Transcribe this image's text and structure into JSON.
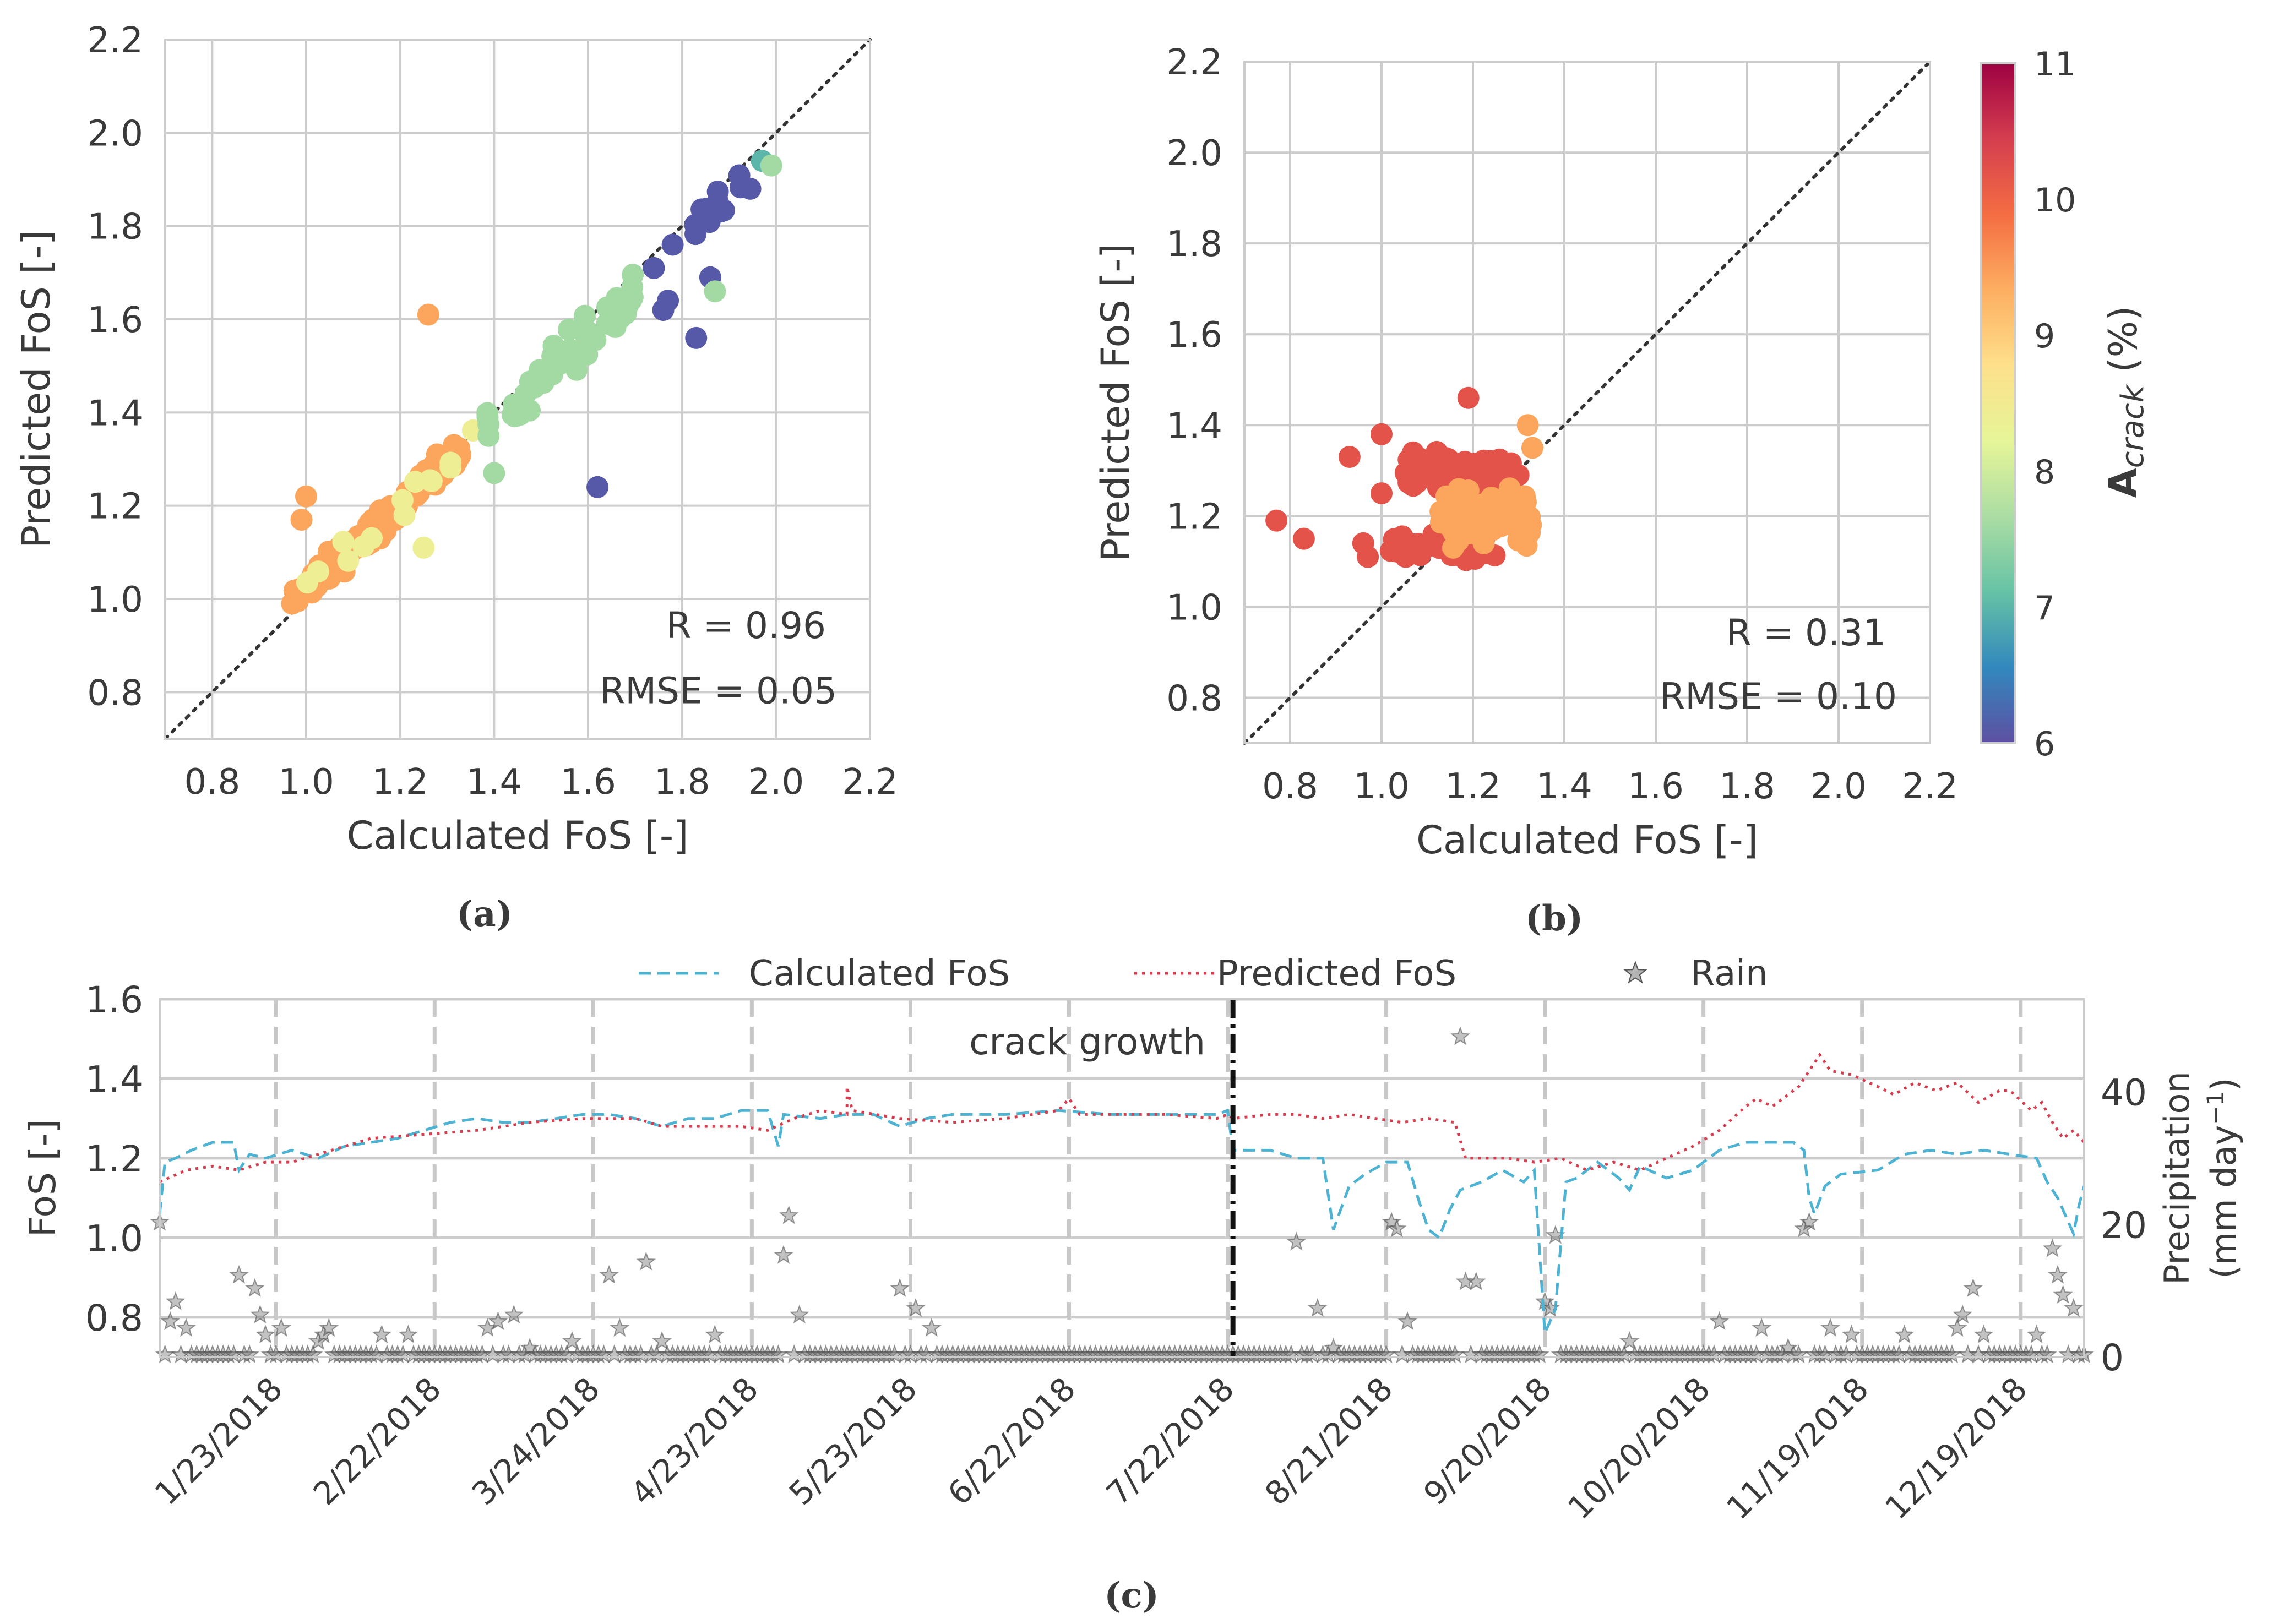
{
  "colors": {
    "grid": "#cccccc",
    "frame": "#cccccc",
    "text": "#3a3a3a",
    "calc_line": "#4eb3d3",
    "pred_line": "#d53e4f",
    "rain": "#777777",
    "diag": "#333333",
    "cmap": [
      "#5e4fa2",
      "#3288bd",
      "#66c2a5",
      "#abdda4",
      "#e6f598",
      "#fee08b",
      "#fdae61",
      "#f46d43",
      "#d53e4f",
      "#9e0142"
    ]
  },
  "chart_data": [
    {
      "id": "a",
      "type": "scatter",
      "caption": "(a)",
      "xlabel": "Calculated FoS [-]",
      "ylabel": "Predicted FoS [-]",
      "xlim": [
        0.7,
        2.2
      ],
      "ylim": [
        0.7,
        2.2
      ],
      "xticks": [
        "0.8",
        "1.0",
        "1.2",
        "1.4",
        "1.6",
        "1.8",
        "2.0",
        "2.2"
      ],
      "yticks": [
        "0.8",
        "1.0",
        "1.2",
        "1.4",
        "1.6",
        "1.8",
        "2.0",
        "2.2"
      ],
      "annotations": [
        "R = 0.96",
        "RMSE = 0.05"
      ],
      "clusters": [
        {
          "name": "orange",
          "color_value": 9.4,
          "n": 130,
          "x_range": [
            0.97,
            1.33
          ],
          "slope": 0.9,
          "intercept": 0.12,
          "noise": 0.035
        },
        {
          "name": "light-yellow",
          "color_value": 8.4,
          "n": 14,
          "x_range": [
            0.98,
            1.36
          ],
          "slope": 0.9,
          "intercept": 0.12,
          "noise": 0.04
        },
        {
          "name": "green",
          "color_value": 7.6,
          "n": 55,
          "x_range": [
            1.38,
            1.7
          ],
          "slope": 0.95,
          "intercept": 0.05,
          "noise": 0.05
        },
        {
          "name": "purple",
          "color_value": 6.1,
          "n": 16,
          "x_range": [
            1.82,
            1.95
          ],
          "slope": 1.0,
          "intercept": -0.03,
          "noise": 0.04
        }
      ],
      "points": [
        {
          "x": 1.26,
          "y": 1.61,
          "c": 9.4
        },
        {
          "x": 1.62,
          "y": 1.24,
          "c": 6.1
        },
        {
          "x": 1.76,
          "y": 1.62,
          "c": 6.1
        },
        {
          "x": 1.77,
          "y": 1.64,
          "c": 6.1
        },
        {
          "x": 1.83,
          "y": 1.56,
          "c": 6.1
        },
        {
          "x": 1.86,
          "y": 1.69,
          "c": 6.1
        },
        {
          "x": 1.74,
          "y": 1.71,
          "c": 6.1
        },
        {
          "x": 1.78,
          "y": 1.76,
          "c": 6.1
        },
        {
          "x": 1.97,
          "y": 1.94,
          "c": 7.0
        },
        {
          "x": 1.99,
          "y": 1.93,
          "c": 7.6
        },
        {
          "x": 1.87,
          "y": 1.66,
          "c": 7.6
        },
        {
          "x": 1.4,
          "y": 1.27,
          "c": 7.6
        },
        {
          "x": 1.25,
          "y": 1.11,
          "c": 8.4
        },
        {
          "x": 0.97,
          "y": 0.99,
          "c": 9.4
        },
        {
          "x": 1.0,
          "y": 1.22,
          "c": 9.4
        },
        {
          "x": 0.99,
          "y": 1.17,
          "c": 9.4
        }
      ]
    },
    {
      "id": "b",
      "type": "scatter",
      "caption": "(b)",
      "xlabel": "Calculated FoS [-]",
      "ylabel": "Predicted FoS [-]",
      "xlim": [
        0.7,
        2.2
      ],
      "ylim": [
        0.7,
        2.2
      ],
      "xticks": [
        "0.8",
        "1.0",
        "1.2",
        "1.4",
        "1.6",
        "1.8",
        "2.0",
        "2.2"
      ],
      "yticks": [
        "0.8",
        "1.0",
        "1.2",
        "1.4",
        "1.6",
        "1.8",
        "2.0",
        "2.2"
      ],
      "annotations": [
        "R = 0.31",
        "RMSE = 0.10"
      ],
      "colorbar": {
        "label_main": "A",
        "label_sub": "crack",
        "label_unit": " (%)",
        "range": [
          6,
          11
        ],
        "ticks": [
          "6",
          "7",
          "8",
          "9",
          "10",
          "11"
        ]
      },
      "clusters": [
        {
          "name": "red-upper",
          "color_value": 10.2,
          "n": 90,
          "x_range": [
            1.05,
            1.3
          ],
          "y_mean": 1.3,
          "y_sd": 0.035
        },
        {
          "name": "red-lower",
          "color_value": 10.2,
          "n": 45,
          "x_range": [
            1.0,
            1.25
          ],
          "y_mean": 1.13,
          "y_sd": 0.03
        },
        {
          "name": "orange",
          "color_value": 9.4,
          "n": 70,
          "x_range": [
            1.12,
            1.33
          ],
          "y_mean": 1.2,
          "y_sd": 0.06
        }
      ],
      "points": [
        {
          "x": 0.77,
          "y": 1.19,
          "c": 10.2
        },
        {
          "x": 0.83,
          "y": 1.15,
          "c": 10.2
        },
        {
          "x": 0.93,
          "y": 1.33,
          "c": 10.2
        },
        {
          "x": 0.96,
          "y": 1.14,
          "c": 10.2
        },
        {
          "x": 0.97,
          "y": 1.11,
          "c": 10.2
        },
        {
          "x": 1.0,
          "y": 1.38,
          "c": 10.2
        },
        {
          "x": 1.0,
          "y": 1.25,
          "c": 10.2
        },
        {
          "x": 1.19,
          "y": 1.46,
          "c": 10.2
        },
        {
          "x": 1.32,
          "y": 1.4,
          "c": 9.4
        },
        {
          "x": 1.33,
          "y": 1.35,
          "c": 9.4
        }
      ]
    },
    {
      "id": "c",
      "type": "line",
      "caption": "(c)",
      "ylabel_left": "FoS [-]",
      "ylabel_right": "Precipitation",
      "ylabel_right_unit": "(mm day",
      "ylabel_right_exp": "−1",
      "ylabel_right_close": ")",
      "ylim_left": [
        0.7,
        1.6
      ],
      "yticks_left": [
        "0.8",
        "1.0",
        "1.2",
        "1.4",
        "1.6"
      ],
      "ylim_right": [
        0,
        54
      ],
      "yticks_right": [
        "0",
        "20",
        "40"
      ],
      "x_days": [
        0,
        364
      ],
      "xtick_days": [
        22,
        52,
        82,
        112,
        142,
        172,
        202,
        232,
        262,
        292,
        322,
        352
      ],
      "xticks": [
        "1/23/2018",
        "2/22/2018",
        "3/24/2018",
        "4/23/2018",
        "5/23/2018",
        "6/22/2018",
        "7/22/2018",
        "8/21/2018",
        "9/20/2018",
        "10/20/2018",
        "11/19/2018",
        "12/19/2018"
      ],
      "crack_day": 203,
      "crack_label": "crack growth",
      "legend": [
        "Calculated FoS",
        "Predicted FoS",
        "Rain"
      ],
      "calculated_fos": [
        [
          0,
          1.06
        ],
        [
          1,
          1.19
        ],
        [
          3,
          1.2
        ],
        [
          6,
          1.22
        ],
        [
          10,
          1.24
        ],
        [
          14,
          1.24
        ],
        [
          15,
          1.17
        ],
        [
          17,
          1.21
        ],
        [
          20,
          1.2
        ],
        [
          25,
          1.22
        ],
        [
          30,
          1.2
        ],
        [
          35,
          1.23
        ],
        [
          40,
          1.24
        ],
        [
          45,
          1.25
        ],
        [
          50,
          1.27
        ],
        [
          55,
          1.29
        ],
        [
          60,
          1.3
        ],
        [
          65,
          1.29
        ],
        [
          70,
          1.29
        ],
        [
          75,
          1.3
        ],
        [
          80,
          1.31
        ],
        [
          85,
          1.31
        ],
        [
          90,
          1.3
        ],
        [
          95,
          1.28
        ],
        [
          100,
          1.3
        ],
        [
          105,
          1.3
        ],
        [
          110,
          1.32
        ],
        [
          115,
          1.32
        ],
        [
          117,
          1.23
        ],
        [
          118,
          1.31
        ],
        [
          125,
          1.3
        ],
        [
          130,
          1.31
        ],
        [
          135,
          1.31
        ],
        [
          140,
          1.28
        ],
        [
          145,
          1.3
        ],
        [
          150,
          1.31
        ],
        [
          160,
          1.31
        ],
        [
          170,
          1.32
        ],
        [
          180,
          1.31
        ],
        [
          190,
          1.31
        ],
        [
          200,
          1.31
        ],
        [
          202,
          1.32
        ],
        [
          203,
          1.22
        ],
        [
          210,
          1.22
        ],
        [
          215,
          1.2
        ],
        [
          220,
          1.2
        ],
        [
          222,
          1.02
        ],
        [
          225,
          1.13
        ],
        [
          228,
          1.16
        ],
        [
          232,
          1.19
        ],
        [
          236,
          1.19
        ],
        [
          238,
          1.1
        ],
        [
          240,
          1.02
        ],
        [
          242,
          1.0
        ],
        [
          244,
          1.07
        ],
        [
          246,
          1.12
        ],
        [
          250,
          1.14
        ],
        [
          254,
          1.17
        ],
        [
          258,
          1.14
        ],
        [
          260,
          1.17
        ],
        [
          262,
          0.76
        ],
        [
          264,
          0.82
        ],
        [
          266,
          1.14
        ],
        [
          268,
          1.15
        ],
        [
          272,
          1.19
        ],
        [
          276,
          1.15
        ],
        [
          278,
          1.12
        ],
        [
          280,
          1.18
        ],
        [
          285,
          1.15
        ],
        [
          290,
          1.17
        ],
        [
          295,
          1.22
        ],
        [
          300,
          1.24
        ],
        [
          305,
          1.24
        ],
        [
          309,
          1.24
        ],
        [
          311,
          1.22
        ],
        [
          312,
          1.1
        ],
        [
          313,
          1.06
        ],
        [
          315,
          1.13
        ],
        [
          318,
          1.16
        ],
        [
          325,
          1.17
        ],
        [
          330,
          1.21
        ],
        [
          335,
          1.22
        ],
        [
          340,
          1.21
        ],
        [
          345,
          1.22
        ],
        [
          350,
          1.21
        ],
        [
          355,
          1.2
        ],
        [
          357,
          1.14
        ],
        [
          359,
          1.1
        ],
        [
          361,
          1.04
        ],
        [
          362,
          1.01
        ],
        [
          363,
          1.08
        ],
        [
          364,
          1.13
        ]
      ],
      "predicted_fos": [
        [
          0,
          1.14
        ],
        [
          5,
          1.17
        ],
        [
          10,
          1.18
        ],
        [
          15,
          1.17
        ],
        [
          20,
          1.19
        ],
        [
          25,
          1.19
        ],
        [
          30,
          1.21
        ],
        [
          35,
          1.23
        ],
        [
          40,
          1.25
        ],
        [
          50,
          1.26
        ],
        [
          60,
          1.27
        ],
        [
          70,
          1.29
        ],
        [
          80,
          1.3
        ],
        [
          90,
          1.3
        ],
        [
          95,
          1.28
        ],
        [
          100,
          1.28
        ],
        [
          110,
          1.28
        ],
        [
          115,
          1.27
        ],
        [
          120,
          1.3
        ],
        [
          125,
          1.32
        ],
        [
          130,
          1.31
        ],
        [
          130,
          1.38
        ],
        [
          131,
          1.32
        ],
        [
          140,
          1.3
        ],
        [
          150,
          1.29
        ],
        [
          160,
          1.3
        ],
        [
          170,
          1.32
        ],
        [
          172,
          1.35
        ],
        [
          174,
          1.31
        ],
        [
          180,
          1.31
        ],
        [
          190,
          1.31
        ],
        [
          200,
          1.3
        ],
        [
          202,
          1.31
        ],
        [
          203,
          1.3
        ],
        [
          210,
          1.31
        ],
        [
          215,
          1.31
        ],
        [
          220,
          1.3
        ],
        [
          225,
          1.31
        ],
        [
          230,
          1.3
        ],
        [
          235,
          1.29
        ],
        [
          240,
          1.3
        ],
        [
          245,
          1.29
        ],
        [
          247,
          1.2
        ],
        [
          250,
          1.2
        ],
        [
          255,
          1.2
        ],
        [
          260,
          1.19
        ],
        [
          265,
          1.2
        ],
        [
          270,
          1.17
        ],
        [
          275,
          1.19
        ],
        [
          280,
          1.17
        ],
        [
          285,
          1.2
        ],
        [
          290,
          1.23
        ],
        [
          295,
          1.27
        ],
        [
          300,
          1.33
        ],
        [
          302,
          1.35
        ],
        [
          305,
          1.33
        ],
        [
          310,
          1.38
        ],
        [
          312,
          1.42
        ],
        [
          314,
          1.46
        ],
        [
          316,
          1.42
        ],
        [
          320,
          1.41
        ],
        [
          325,
          1.38
        ],
        [
          328,
          1.36
        ],
        [
          332,
          1.39
        ],
        [
          336,
          1.37
        ],
        [
          340,
          1.39
        ],
        [
          344,
          1.34
        ],
        [
          348,
          1.37
        ],
        [
          350,
          1.37
        ],
        [
          354,
          1.32
        ],
        [
          356,
          1.34
        ],
        [
          358,
          1.29
        ],
        [
          360,
          1.25
        ],
        [
          362,
          1.27
        ],
        [
          364,
          1.24
        ]
      ],
      "rain": [
        [
          0,
          20
        ],
        [
          2,
          5
        ],
        [
          3,
          8
        ],
        [
          5,
          4
        ],
        [
          15,
          12
        ],
        [
          18,
          10
        ],
        [
          19,
          6
        ],
        [
          20,
          3
        ],
        [
          23,
          4
        ],
        [
          30,
          2
        ],
        [
          31,
          3
        ],
        [
          32,
          4
        ],
        [
          42,
          3
        ],
        [
          47,
          3
        ],
        [
          62,
          4
        ],
        [
          64,
          5
        ],
        [
          67,
          6
        ],
        [
          70,
          1
        ],
        [
          78,
          2
        ],
        [
          85,
          12
        ],
        [
          87,
          4
        ],
        [
          92,
          14
        ],
        [
          95,
          2
        ],
        [
          105,
          3
        ],
        [
          118,
          15
        ],
        [
          119,
          21
        ],
        [
          121,
          6
        ],
        [
          140,
          10
        ],
        [
          143,
          7
        ],
        [
          146,
          4
        ],
        [
          215,
          17
        ],
        [
          219,
          7
        ],
        [
          222,
          1
        ],
        [
          233,
          20
        ],
        [
          234,
          19
        ],
        [
          236,
          5
        ],
        [
          246,
          48
        ],
        [
          247,
          11
        ],
        [
          249,
          11
        ],
        [
          262,
          8
        ],
        [
          263,
          7
        ],
        [
          264,
          18
        ],
        [
          278,
          2
        ],
        [
          295,
          5
        ],
        [
          303,
          4
        ],
        [
          308,
          1
        ],
        [
          311,
          19
        ],
        [
          312,
          20
        ],
        [
          316,
          4
        ],
        [
          320,
          3
        ],
        [
          330,
          3
        ],
        [
          340,
          4
        ],
        [
          341,
          6
        ],
        [
          343,
          10
        ],
        [
          345,
          3
        ],
        [
          355,
          3
        ],
        [
          358,
          16
        ],
        [
          359,
          12
        ],
        [
          360,
          9
        ],
        [
          362,
          7
        ]
      ]
    }
  ]
}
